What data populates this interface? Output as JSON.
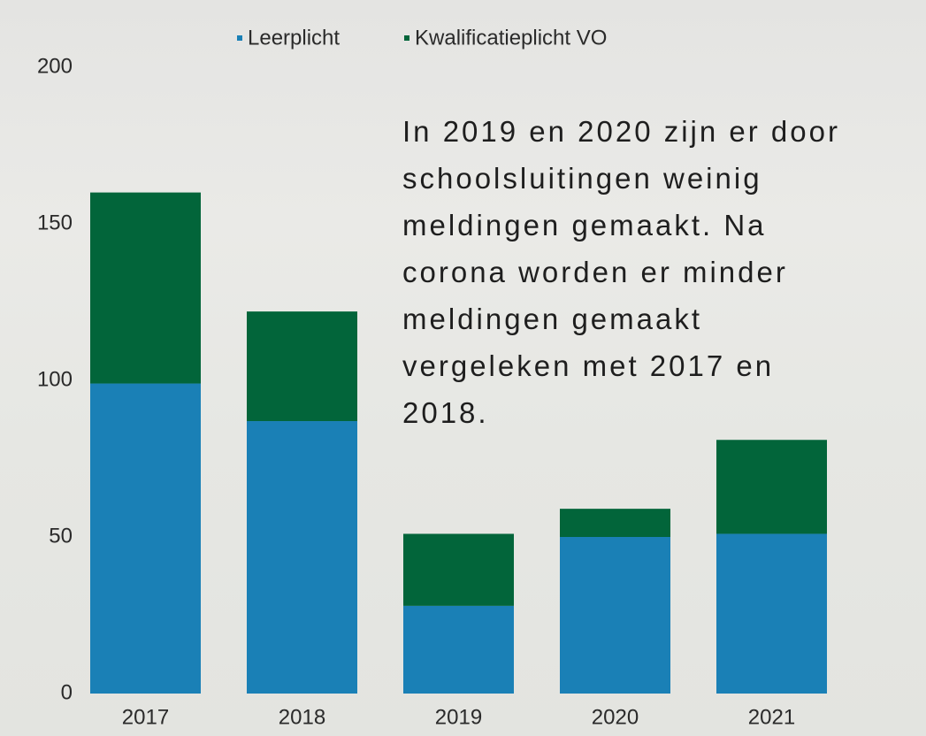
{
  "chart_data": {
    "type": "bar",
    "stacked": true,
    "categories": [
      "2017",
      "2018",
      "2019",
      "2020",
      "2021"
    ],
    "series": [
      {
        "name": "Leerplicht",
        "color": "#1a80b6",
        "values": [
          99,
          87,
          28,
          50,
          51
        ]
      },
      {
        "name": "Kwalificatieplicht VO",
        "color": "#02653a",
        "values": [
          61,
          35,
          23,
          9,
          30
        ]
      }
    ],
    "ylim": [
      0,
      200
    ],
    "yticks": [
      0,
      50,
      100,
      150,
      200
    ],
    "grid": false,
    "legend": "top",
    "annotation": [
      "In 2019 en 2020 zijn er door",
      "schoolsluitingen weinig",
      "meldingen gemaakt. Na",
      "corona worden er minder",
      "meldingen gemaakt",
      "vergeleken met 2017 en",
      "2018."
    ]
  }
}
